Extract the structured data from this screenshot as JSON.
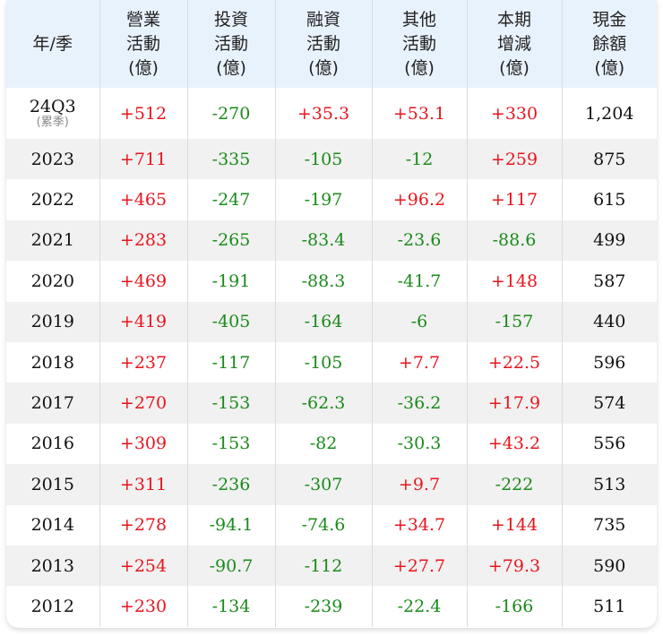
{
  "table": {
    "headers": [
      [
        "年/季"
      ],
      [
        "營業",
        "活動",
        "(億)"
      ],
      [
        "投資",
        "活動",
        "(億)"
      ],
      [
        "融資",
        "活動",
        "(億)"
      ],
      [
        "其他",
        "活動",
        "(億)"
      ],
      [
        "本期",
        "增減",
        "(億)"
      ],
      [
        "現金",
        "餘額",
        "(億)"
      ]
    ],
    "rows": [
      {
        "period": "24Q3",
        "period_note": "(累季)",
        "operating": "+512",
        "investing": "-270",
        "financing": "+35.3",
        "other": "+53.1",
        "net_change": "+330",
        "cash_balance": "1,204"
      },
      {
        "period": "2023",
        "operating": "+711",
        "investing": "-335",
        "financing": "-105",
        "other": "-12",
        "net_change": "+259",
        "cash_balance": "875"
      },
      {
        "period": "2022",
        "operating": "+465",
        "investing": "-247",
        "financing": "-197",
        "other": "+96.2",
        "net_change": "+117",
        "cash_balance": "615"
      },
      {
        "period": "2021",
        "operating": "+283",
        "investing": "-265",
        "financing": "-83.4",
        "other": "-23.6",
        "net_change": "-88.6",
        "cash_balance": "499"
      },
      {
        "period": "2020",
        "operating": "+469",
        "investing": "-191",
        "financing": "-88.3",
        "other": "-41.7",
        "net_change": "+148",
        "cash_balance": "587"
      },
      {
        "period": "2019",
        "operating": "+419",
        "investing": "-405",
        "financing": "-164",
        "other": "-6",
        "net_change": "-157",
        "cash_balance": "440"
      },
      {
        "period": "2018",
        "operating": "+237",
        "investing": "-117",
        "financing": "-105",
        "other": "+7.7",
        "net_change": "+22.5",
        "cash_balance": "596"
      },
      {
        "period": "2017",
        "operating": "+270",
        "investing": "-153",
        "financing": "-62.3",
        "other": "-36.2",
        "net_change": "+17.9",
        "cash_balance": "574"
      },
      {
        "period": "2016",
        "operating": "+309",
        "investing": "-153",
        "financing": "-82",
        "other": "-30.3",
        "net_change": "+43.2",
        "cash_balance": "556"
      },
      {
        "period": "2015",
        "operating": "+311",
        "investing": "-236",
        "financing": "-307",
        "other": "+9.7",
        "net_change": "-222",
        "cash_balance": "513"
      },
      {
        "period": "2014",
        "operating": "+278",
        "investing": "-94.1",
        "financing": "-74.6",
        "other": "+34.7",
        "net_change": "+144",
        "cash_balance": "735"
      },
      {
        "period": "2013",
        "operating": "+254",
        "investing": "-90.7",
        "financing": "-112",
        "other": "+27.7",
        "net_change": "+79.3",
        "cash_balance": "590"
      },
      {
        "period": "2012",
        "operating": "+230",
        "investing": "-134",
        "financing": "-239",
        "other": "-22.4",
        "net_change": "-166",
        "cash_balance": "511"
      }
    ]
  },
  "colors": {
    "header_bg": "#e8f2fd",
    "positive": "#e8141c",
    "negative": "#1a8a1a",
    "alt_row_bg": "#f1f1f1"
  }
}
